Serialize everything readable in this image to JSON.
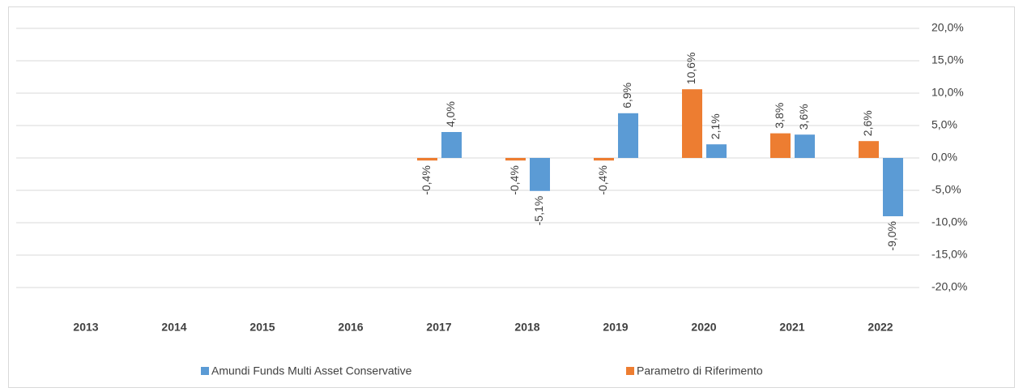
{
  "chart_data": {
    "type": "bar",
    "categories": [
      "2013",
      "2014",
      "2015",
      "2016",
      "2017",
      "2018",
      "2019",
      "2020",
      "2021",
      "2022"
    ],
    "series": [
      {
        "name": "Parametro di Riferimento",
        "color": "#ed7d31",
        "values": [
          null,
          null,
          null,
          null,
          -0.4,
          -0.4,
          -0.4,
          10.6,
          3.8,
          2.6
        ],
        "value_labels": [
          null,
          null,
          null,
          null,
          "-0,4%",
          "-0,4%",
          "-0,4%",
          "10,6%",
          "3,8%",
          "2,6%"
        ]
      },
      {
        "name": "Amundi Funds Multi Asset Conservative",
        "color": "#5b9bd5",
        "values": [
          null,
          null,
          null,
          null,
          4.0,
          -5.1,
          6.9,
          2.1,
          3.6,
          -9.0
        ],
        "value_labels": [
          null,
          null,
          null,
          null,
          "4,0%",
          "-5,1%",
          "6,9%",
          "2,1%",
          "3,6%",
          "-9,0%"
        ]
      }
    ],
    "ylim": [
      -20,
      20
    ],
    "yticks": [
      {
        "value": -20,
        "label": "-20,0%"
      },
      {
        "value": -15,
        "label": "-15,0%"
      },
      {
        "value": -10,
        "label": "-10,0%"
      },
      {
        "value": -5,
        "label": "-5,0%"
      },
      {
        "value": 0,
        "label": "0,0%"
      },
      {
        "value": 5,
        "label": "5,0%"
      },
      {
        "value": 10,
        "label": "10,0%"
      },
      {
        "value": 15,
        "label": "15,0%"
      },
      {
        "value": 20,
        "label": "20,0%"
      }
    ],
    "grid": true
  }
}
